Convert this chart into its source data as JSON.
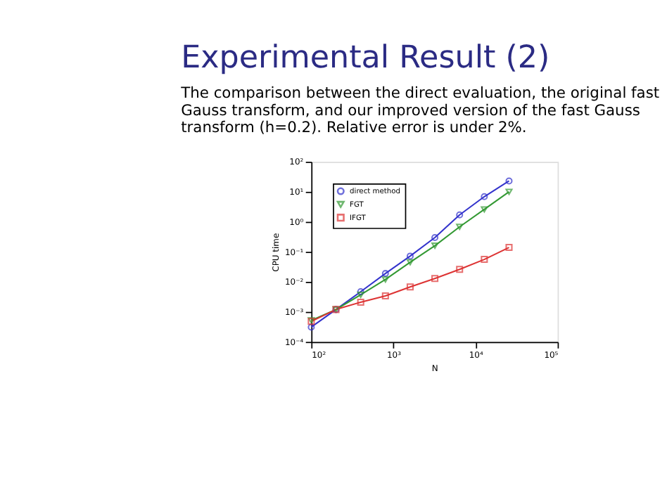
{
  "chart_data": {
    "type": "line",
    "title": "Experimental Result (2)",
    "subtitle": [
      "The comparison between the direct evaluation, the original fast",
      "Gauss transform, and our improved version of the fast Gauss",
      "transform (h=0.2). Relative error is under 2%."
    ],
    "xlabel": "N",
    "ylabel": "CPU time",
    "log": "xy",
    "x": [
      100,
      200,
      400,
      800,
      1600,
      3200,
      6400,
      12800,
      25600
    ],
    "xlim": [
      100,
      100000
    ],
    "xticks": [
      {
        "value": 100,
        "label": "10²"
      },
      {
        "value": 1000,
        "label": "10³"
      },
      {
        "value": 10000,
        "label": "10⁴"
      },
      {
        "value": 100000,
        "label": "10⁵"
      }
    ],
    "ylim": [
      0.0001,
      100
    ],
    "yticks": [
      {
        "value": 0.0001,
        "label": "10⁻⁴"
      },
      {
        "value": 0.001,
        "label": "10⁻³"
      },
      {
        "value": 0.01,
        "label": "10⁻²"
      },
      {
        "value": 0.1,
        "label": "10⁻¹"
      },
      {
        "value": 1,
        "label": "10⁰"
      },
      {
        "value": 10,
        "label": "10¹"
      },
      {
        "value": 100,
        "label": "10²"
      }
    ],
    "series": [
      {
        "name": "direct method",
        "color": "#3333cc",
        "marker": "circle",
        "values": [
          0.00031,
          0.0012,
          0.0047,
          0.019,
          0.072,
          0.3,
          1.7,
          6.9,
          23
        ]
      },
      {
        "name": "FGT",
        "color": "#339933",
        "marker": "triangle",
        "values": [
          0.00052,
          0.0012,
          0.0037,
          0.012,
          0.045,
          0.16,
          0.68,
          2.6,
          10
        ]
      },
      {
        "name": "IFGT",
        "color": "#dd3333",
        "marker": "square",
        "values": [
          0.00048,
          0.0012,
          0.0021,
          0.0034,
          0.0068,
          0.013,
          0.026,
          0.056,
          0.14
        ]
      }
    ],
    "legend": "top left",
    "grid": false
  }
}
